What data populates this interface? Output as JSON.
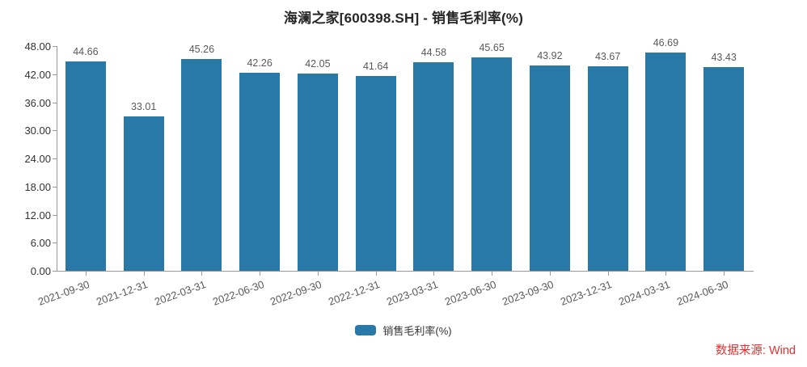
{
  "chart_data": {
    "type": "bar",
    "title": "海澜之家[600398.SH] - 销售毛利率(%)",
    "categories": [
      "2021-09-30",
      "2021-12-31",
      "2022-03-31",
      "2022-06-30",
      "2022-09-30",
      "2022-12-31",
      "2023-03-31",
      "2023-06-30",
      "2023-09-30",
      "2023-12-31",
      "2024-03-31",
      "2024-06-30"
    ],
    "values": [
      44.66,
      33.01,
      45.26,
      42.26,
      42.05,
      41.64,
      44.58,
      45.65,
      43.92,
      43.67,
      46.69,
      43.43
    ],
    "series_name": "销售毛利率(%)",
    "ylim": [
      0,
      48
    ],
    "y_step": 6,
    "y_tick_labels": [
      "0.00",
      "6.00",
      "12.00",
      "18.00",
      "24.00",
      "30.00",
      "36.00",
      "42.00",
      "48.00"
    ],
    "grid": false,
    "legend_position": "bottom",
    "bar_color": "#2878a8",
    "axis_color": "#999999",
    "data_label_color": "#595959"
  },
  "legend": {
    "label": "销售毛利率(%)"
  },
  "source": {
    "label": "数据来源: Wind",
    "color": "#e03030"
  }
}
